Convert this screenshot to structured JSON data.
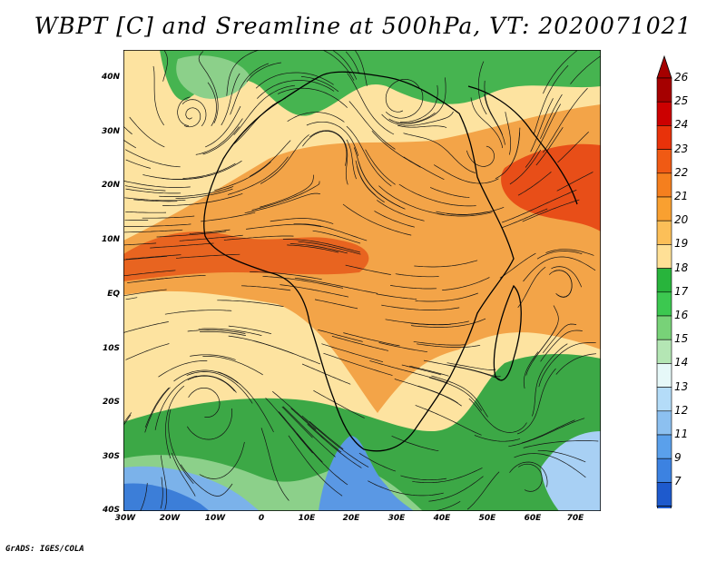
{
  "title": "WBPT [C] and Sreamline at 500hPa, VT: 2020071021",
  "footer": "GrADS: IGES/COLA",
  "lat_labels": [
    "40N",
    "30N",
    "20N",
    "10N",
    "EQ",
    "10S",
    "20S",
    "30S",
    "40S"
  ],
  "lon_labels": [
    "30W",
    "20W",
    "10W",
    "0",
    "10E",
    "20E",
    "30E",
    "40E",
    "50E",
    "60E",
    "70E"
  ],
  "colorbar": {
    "labels": [
      "26",
      "25",
      "24",
      "23",
      "22",
      "21",
      "20",
      "19",
      "18",
      "17",
      "16",
      "15",
      "14",
      "13",
      "12",
      "11",
      "9",
      "7"
    ],
    "colors": [
      "#a50000",
      "#cc0000",
      "#e8320a",
      "#f05a14",
      "#f57f1e",
      "#f9a030",
      "#fcbf58",
      "#ffe096",
      "#28b43c",
      "#3cc850",
      "#78d278",
      "#b4e6b4",
      "#e6f8f8",
      "#b4dcf8",
      "#8cc0f0",
      "#5aa0eb",
      "#3c82e1",
      "#1e5acd"
    ]
  },
  "map_colors": {
    "land_light": "#fde8a8",
    "orange_light": "#f6b25e",
    "orange": "#f29a38",
    "red": "#e8541a",
    "green": "#3ca846",
    "green_light": "#8cd08a",
    "blue": "#6ca8e8",
    "blue_dark": "#2c70d4",
    "line": "#141414"
  }
}
